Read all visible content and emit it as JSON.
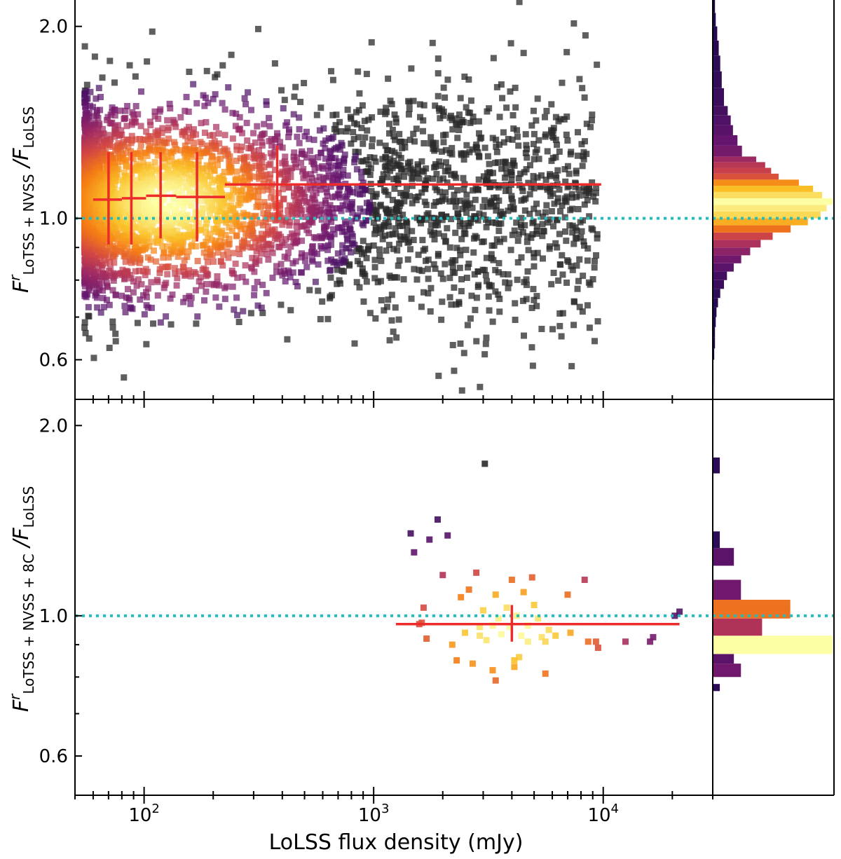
{
  "figure": {
    "xlabel": "LoLSS flux density (mJy)",
    "x_scale": "log",
    "x_ticks": [
      {
        "value": 100,
        "base": "10",
        "exp": "2"
      },
      {
        "value": 1000,
        "base": "10",
        "exp": "3"
      },
      {
        "value": 10000,
        "base": "10",
        "exp": "4"
      }
    ],
    "xlim": [
      50,
      30000
    ],
    "reference_line": {
      "value": 1.0,
      "color": "#1fbfbf",
      "style": "dotted"
    },
    "colormap": "inferno (density)",
    "colors": {
      "trend": "#ee2b2b",
      "reference": "#1fbfbf",
      "outlier": "#2a2a2a"
    }
  },
  "chart_data": [
    {
      "type": "scatter",
      "panel": "top",
      "ylabel": {
        "main": "F",
        "sup": "r",
        "sub1": "LoTSS + NVSS",
        "sep": " /F",
        "sub2": "LoLSS"
      },
      "y_scale": "log",
      "ylim": [
        0.52,
        2.2
      ],
      "y_ticks": [
        {
          "value": 0.6,
          "label": "0.6"
        },
        {
          "value": 1.0,
          "label": "1.0"
        },
        {
          "value": 2.0,
          "label": "2.0"
        }
      ],
      "binned_medians": [
        {
          "x": 70,
          "y": 1.07,
          "xerr": [
            60,
            80
          ],
          "yerr": [
            0.91,
            1.27
          ]
        },
        {
          "x": 88,
          "y": 1.075,
          "xerr": [
            80,
            102
          ],
          "yerr": [
            0.91,
            1.27
          ]
        },
        {
          "x": 118,
          "y": 1.085,
          "xerr": [
            102,
            138
          ],
          "yerr": [
            0.93,
            1.27
          ]
        },
        {
          "x": 170,
          "y": 1.08,
          "xerr": [
            138,
            225
          ],
          "yerr": [
            0.92,
            1.27
          ]
        },
        {
          "x": 380,
          "y": 1.13,
          "xerr": [
            225,
            9800
          ],
          "yerr": [
            1.0,
            1.3
          ]
        }
      ],
      "scatter_description": "Several thousand sources between about 55 mJy and 10000 mJy, densest near 60-250 mJy at ratio ~1.05",
      "histogram": {
        "orientation": "horizontal",
        "bins": [
          {
            "y0": 0.55,
            "y1": 0.575,
            "count": 1
          },
          {
            "y0": 0.575,
            "y1": 0.6,
            "count": 1
          },
          {
            "y0": 0.6,
            "y1": 0.625,
            "count": 2
          },
          {
            "y0": 0.625,
            "y1": 0.65,
            "count": 3
          },
          {
            "y0": 0.65,
            "y1": 0.675,
            "count": 3
          },
          {
            "y0": 0.675,
            "y1": 0.7,
            "count": 4
          },
          {
            "y0": 0.7,
            "y1": 0.725,
            "count": 5
          },
          {
            "y0": 0.725,
            "y1": 0.75,
            "count": 7
          },
          {
            "y0": 0.75,
            "y1": 0.775,
            "count": 10
          },
          {
            "y0": 0.775,
            "y1": 0.8,
            "count": 15
          },
          {
            "y0": 0.8,
            "y1": 0.825,
            "count": 19
          },
          {
            "y0": 0.825,
            "y1": 0.85,
            "count": 28
          },
          {
            "y0": 0.85,
            "y1": 0.875,
            "count": 38
          },
          {
            "y0": 0.875,
            "y1": 0.9,
            "count": 50
          },
          {
            "y0": 0.9,
            "y1": 0.925,
            "count": 64
          },
          {
            "y0": 0.925,
            "y1": 0.95,
            "count": 80
          },
          {
            "y0": 0.95,
            "y1": 0.975,
            "count": 104
          },
          {
            "y0": 0.975,
            "y1": 1.0,
            "count": 127
          },
          {
            "y0": 1.0,
            "y1": 1.025,
            "count": 144
          },
          {
            "y0": 1.025,
            "y1": 1.05,
            "count": 152
          },
          {
            "y0": 1.05,
            "y1": 1.075,
            "count": 160
          },
          {
            "y0": 1.075,
            "y1": 1.1,
            "count": 146
          },
          {
            "y0": 1.1,
            "y1": 1.125,
            "count": 134
          },
          {
            "y0": 1.125,
            "y1": 1.15,
            "count": 115
          },
          {
            "y0": 1.15,
            "y1": 1.175,
            "count": 88
          },
          {
            "y0": 1.175,
            "y1": 1.2,
            "count": 78
          },
          {
            "y0": 1.2,
            "y1": 1.225,
            "count": 70
          },
          {
            "y0": 1.225,
            "y1": 1.25,
            "count": 58
          },
          {
            "y0": 1.25,
            "y1": 1.3,
            "count": 39
          },
          {
            "y0": 1.3,
            "y1": 1.35,
            "count": 33
          },
          {
            "y0": 1.35,
            "y1": 1.4,
            "count": 27
          },
          {
            "y0": 1.4,
            "y1": 1.45,
            "count": 24
          },
          {
            "y0": 1.45,
            "y1": 1.5,
            "count": 20
          },
          {
            "y0": 1.5,
            "y1": 1.6,
            "count": 15
          },
          {
            "y0": 1.6,
            "y1": 1.7,
            "count": 12
          },
          {
            "y0": 1.7,
            "y1": 1.8,
            "count": 10
          },
          {
            "y0": 1.8,
            "y1": 1.9,
            "count": 8
          },
          {
            "y0": 1.9,
            "y1": 2.0,
            "count": 6
          },
          {
            "y0": 2.0,
            "y1": 2.1,
            "count": 4
          },
          {
            "y0": 2.1,
            "y1": 2.2,
            "count": 3
          }
        ]
      }
    },
    {
      "type": "scatter",
      "panel": "bottom",
      "ylabel": {
        "main": "F",
        "sup": "r",
        "sub1": "LoTSS + NVSS + 8C",
        "sep": " /F",
        "sub2": "LoLSS"
      },
      "y_scale": "log",
      "ylim": [
        0.52,
        2.2
      ],
      "y_ticks": [
        {
          "value": 0.6,
          "label": "0.6"
        },
        {
          "value": 1.0,
          "label": "1.0"
        },
        {
          "value": 2.0,
          "label": "2.0"
        }
      ],
      "binned_medians": [
        {
          "x": 4000,
          "y": 0.97,
          "xerr": [
            1250,
            21500
          ],
          "yerr": [
            0.91,
            1.04
          ]
        }
      ],
      "points": [
        {
          "x": 3050,
          "y": 1.74
        },
        {
          "x": 1900,
          "y": 1.42
        },
        {
          "x": 1450,
          "y": 1.35
        },
        {
          "x": 1750,
          "y": 1.32
        },
        {
          "x": 2100,
          "y": 1.34
        },
        {
          "x": 1500,
          "y": 1.26
        },
        {
          "x": 2000,
          "y": 1.16
        },
        {
          "x": 2800,
          "y": 1.17
        },
        {
          "x": 4000,
          "y": 1.14
        },
        {
          "x": 4900,
          "y": 1.15
        },
        {
          "x": 8300,
          "y": 1.14
        },
        {
          "x": 2600,
          "y": 1.1
        },
        {
          "x": 2400,
          "y": 1.07
        },
        {
          "x": 3400,
          "y": 1.08
        },
        {
          "x": 4500,
          "y": 1.09
        },
        {
          "x": 7000,
          "y": 1.08
        },
        {
          "x": 1650,
          "y": 1.03
        },
        {
          "x": 3000,
          "y": 1.02
        },
        {
          "x": 3800,
          "y": 1.03
        },
        {
          "x": 4200,
          "y": 1.0
        },
        {
          "x": 5000,
          "y": 1.04
        },
        {
          "x": 3500,
          "y": 0.99
        },
        {
          "x": 5200,
          "y": 0.99
        },
        {
          "x": 1580,
          "y": 0.97
        },
        {
          "x": 1620,
          "y": 0.975
        },
        {
          "x": 2900,
          "y": 0.96
        },
        {
          "x": 3300,
          "y": 0.965
        },
        {
          "x": 3900,
          "y": 0.96
        },
        {
          "x": 4700,
          "y": 0.965
        },
        {
          "x": 5800,
          "y": 0.95
        },
        {
          "x": 2500,
          "y": 0.94
        },
        {
          "x": 2900,
          "y": 0.93
        },
        {
          "x": 3600,
          "y": 0.935
        },
        {
          "x": 4400,
          "y": 0.93
        },
        {
          "x": 5400,
          "y": 0.925
        },
        {
          "x": 6200,
          "y": 0.93
        },
        {
          "x": 7200,
          "y": 0.94
        },
        {
          "x": 1700,
          "y": 0.92
        },
        {
          "x": 3100,
          "y": 0.915
        },
        {
          "x": 4700,
          "y": 0.91
        },
        {
          "x": 5600,
          "y": 0.91
        },
        {
          "x": 2200,
          "y": 0.9
        },
        {
          "x": 8600,
          "y": 0.91
        },
        {
          "x": 9300,
          "y": 0.91
        },
        {
          "x": 9500,
          "y": 0.89
        },
        {
          "x": 12500,
          "y": 0.91
        },
        {
          "x": 16000,
          "y": 0.91
        },
        {
          "x": 16500,
          "y": 0.925
        },
        {
          "x": 20500,
          "y": 1.0
        },
        {
          "x": 21500,
          "y": 1.015
        },
        {
          "x": 4300,
          "y": 0.86
        },
        {
          "x": 2700,
          "y": 0.84
        },
        {
          "x": 2300,
          "y": 0.85
        },
        {
          "x": 4100,
          "y": 0.85
        },
        {
          "x": 4100,
          "y": 0.83
        },
        {
          "x": 3300,
          "y": 0.82
        },
        {
          "x": 5600,
          "y": 0.81
        },
        {
          "x": 3400,
          "y": 0.79
        }
      ],
      "histogram": {
        "orientation": "horizontal",
        "bins": [
          {
            "y0": 0.76,
            "y1": 0.78,
            "count": 1
          },
          {
            "y0": 0.8,
            "y1": 0.84,
            "count": 4
          },
          {
            "y0": 0.84,
            "y1": 0.87,
            "count": 3
          },
          {
            "y0": 0.87,
            "y1": 0.93,
            "count": 17
          },
          {
            "y0": 0.93,
            "y1": 0.99,
            "count": 7
          },
          {
            "y0": 0.99,
            "y1": 1.06,
            "count": 11
          },
          {
            "y0": 1.06,
            "y1": 1.14,
            "count": 4
          },
          {
            "y0": 1.2,
            "y1": 1.28,
            "count": 3
          },
          {
            "y0": 1.28,
            "y1": 1.36,
            "count": 1
          },
          {
            "y0": 1.68,
            "y1": 1.78,
            "count": 1
          }
        ]
      }
    }
  ]
}
